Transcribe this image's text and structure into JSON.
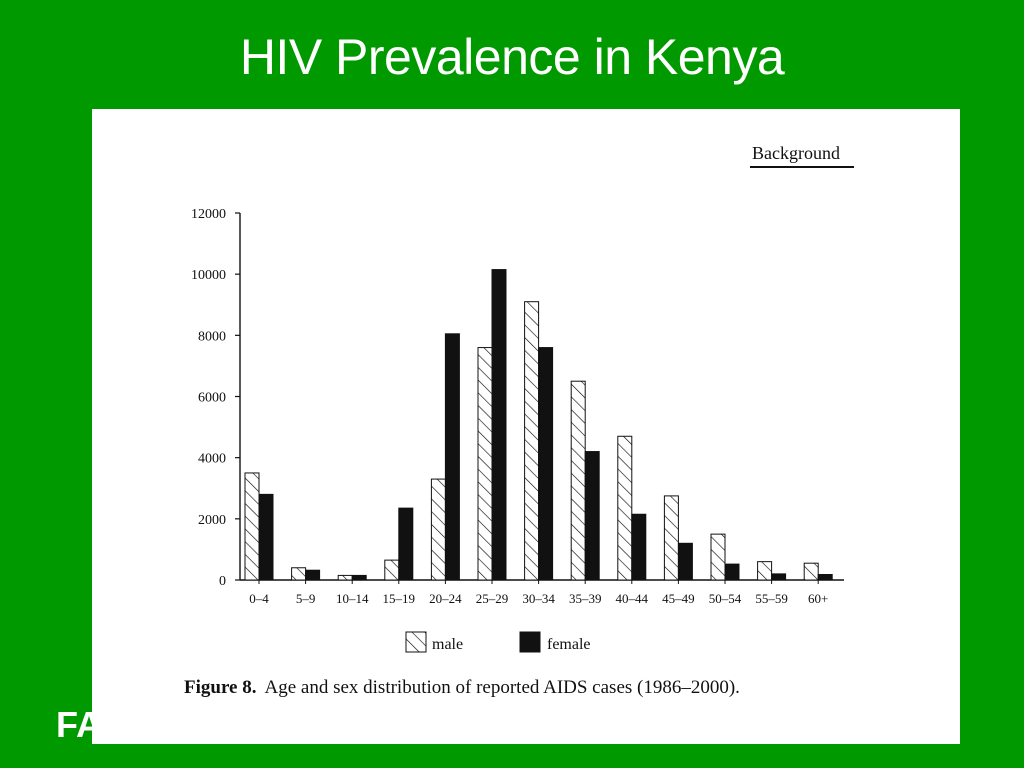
{
  "slide": {
    "title": "HIV Prevalence in Kenya",
    "footer_text": "FA"
  },
  "figure": {
    "section_label": "Background",
    "caption_label": "Figure 8.",
    "caption_text": "Age and sex distribution of reported AIDS cases (1986–2000)."
  },
  "colors": {
    "slide_background": "#009900",
    "female_bar": "#111111",
    "male_bar_pattern": "hatched"
  },
  "chart_data": {
    "type": "bar",
    "title": "",
    "xlabel": "",
    "ylabel": "",
    "categories": [
      "0–4",
      "5–9",
      "10–14",
      "15–19",
      "20–24",
      "25–29",
      "30–34",
      "35–39",
      "40–44",
      "45–49",
      "50–54",
      "55–59",
      "60+"
    ],
    "series": [
      {
        "name": "male",
        "values": [
          3500,
          400,
          150,
          650,
          3300,
          7600,
          9100,
          6500,
          4700,
          2750,
          1500,
          600,
          550
        ]
      },
      {
        "name": "female",
        "values": [
          2800,
          320,
          150,
          2350,
          8050,
          10150,
          7600,
          4200,
          2150,
          1200,
          520,
          200,
          180
        ]
      }
    ],
    "ylim": [
      0,
      12000
    ],
    "yticks": [
      "0",
      "2000",
      "4000",
      "6000",
      "8000",
      "10000",
      "12000"
    ],
    "legend_position": "bottom-center",
    "grid": false
  }
}
